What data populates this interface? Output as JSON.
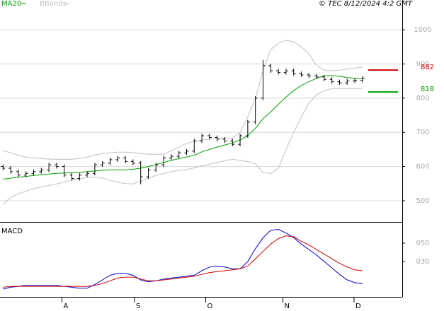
{
  "chart_data": [
    {
      "type": "ohlc",
      "credit": "© TEC 8/12/2024 4:2 GMT",
      "x": [
        0,
        1,
        2,
        3,
        4,
        5,
        6,
        7,
        8,
        9,
        10,
        11,
        12,
        13,
        14,
        15,
        16,
        17,
        18,
        19,
        20,
        21,
        22,
        23,
        24,
        25,
        26,
        27,
        28,
        29,
        30,
        31,
        32,
        33,
        34,
        35,
        36,
        37,
        38,
        39,
        40,
        41,
        42,
        43,
        44,
        45,
        46,
        47
      ],
      "open": [
        600,
        595,
        585,
        575,
        580,
        585,
        590,
        605,
        600,
        575,
        565,
        575,
        580,
        605,
        610,
        620,
        625,
        615,
        610,
        570,
        590,
        605,
        625,
        630,
        640,
        645,
        675,
        690,
        685,
        680,
        675,
        665,
        690,
        730,
        800,
        895,
        880,
        875,
        880,
        872,
        868,
        865,
        862,
        855,
        848,
        845,
        850,
        852
      ],
      "high": [
        606,
        601,
        591,
        586,
        591,
        596,
        611,
        611,
        606,
        581,
        581,
        586,
        611,
        616,
        626,
        631,
        631,
        621,
        616,
        596,
        611,
        631,
        636,
        646,
        651,
        681,
        696,
        696,
        691,
        686,
        681,
        696,
        736,
        806,
        912,
        901,
        886,
        886,
        886,
        878,
        874,
        871,
        868,
        861,
        854,
        856,
        858,
        864
      ],
      "low": [
        589,
        579,
        569,
        569,
        574,
        579,
        584,
        594,
        569,
        559,
        559,
        569,
        574,
        599,
        604,
        614,
        609,
        604,
        548,
        564,
        584,
        599,
        619,
        624,
        634,
        639,
        669,
        679,
        674,
        669,
        659,
        659,
        684,
        724,
        794,
        874,
        869,
        869,
        866,
        862,
        859,
        856,
        849,
        842,
        839,
        839,
        844,
        846
      ],
      "close": [
        595,
        585,
        575,
        580,
        585,
        590,
        605,
        600,
        575,
        565,
        575,
        580,
        605,
        610,
        620,
        625,
        615,
        610,
        570,
        590,
        605,
        625,
        630,
        640,
        645,
        675,
        690,
        685,
        680,
        675,
        665,
        690,
        730,
        800,
        895,
        880,
        875,
        880,
        872,
        868,
        865,
        862,
        855,
        848,
        845,
        850,
        852,
        858
      ],
      "bar_color": "#000000",
      "series": [
        {
          "name": "MA20",
          "color": "#00a000",
          "values": [
            563,
            566,
            569,
            571,
            574,
            576,
            578,
            580,
            581,
            582,
            583,
            585,
            587,
            589,
            590,
            590,
            590,
            592,
            595,
            600,
            606,
            612,
            618,
            623,
            628,
            633,
            643,
            650,
            657,
            663,
            669,
            678,
            690,
            712,
            740,
            760,
            782,
            803,
            822,
            837,
            848,
            858,
            865,
            866,
            864,
            860,
            858,
            857
          ]
        },
        {
          "name": "BBands",
          "color": "#c0c0c0",
          "upper": [
            646,
            640,
            633,
            628,
            625,
            623,
            622,
            621,
            621,
            621,
            624,
            628,
            634,
            638,
            640,
            642,
            642,
            641,
            638,
            636,
            636,
            636,
            646,
            657,
            668,
            673,
            677,
            680,
            682,
            683,
            683,
            700,
            745,
            800,
            880,
            942,
            960,
            969,
            965,
            950,
            930,
            895,
            882,
            880,
            882,
            885,
            888,
            890
          ],
          "lower": [
            490,
            510,
            520,
            528,
            535,
            540,
            545,
            549,
            555,
            560,
            564,
            568,
            569,
            566,
            560,
            554,
            550,
            549,
            558,
            566,
            574,
            580,
            585,
            589,
            591,
            596,
            602,
            607,
            612,
            617,
            621,
            618,
            614,
            608,
            582,
            580,
            595,
            650,
            700,
            745,
            785,
            810,
            822,
            828,
            828,
            828,
            828,
            828
          ]
        }
      ],
      "markers": [
        {
          "value": 882,
          "color": "#cc0000"
        },
        {
          "value": 818,
          "color": "#00a000"
        }
      ],
      "xlim": [
        -0.4,
        52.2
      ],
      "ylim": [
        440,
        1087
      ],
      "yticks": [
        500,
        600,
        700,
        800,
        900,
        1000
      ],
      "grid": true
    },
    {
      "type": "line",
      "title": "MACD",
      "x": [
        0,
        1,
        2,
        3,
        4,
        5,
        6,
        7,
        8,
        9,
        10,
        11,
        12,
        13,
        14,
        15,
        16,
        17,
        18,
        19,
        20,
        21,
        22,
        23,
        24,
        25,
        26,
        27,
        28,
        29,
        30,
        31,
        32,
        33,
        34,
        35,
        36,
        37,
        38,
        39,
        40,
        41,
        42,
        43,
        44,
        45,
        46,
        47
      ],
      "series": [
        {
          "color": "#0000cc",
          "values": [
            0,
            2,
            3,
            4,
            4,
            4,
            4,
            4,
            3,
            2,
            1,
            1,
            5,
            10,
            15,
            17,
            17,
            15,
            10,
            8,
            9,
            11,
            12,
            13,
            14,
            15,
            20,
            24,
            25,
            24,
            22,
            22,
            30,
            44,
            56,
            64,
            65,
            61,
            56,
            49,
            43,
            37,
            30,
            23,
            16,
            10,
            7,
            6
          ]
        },
        {
          "color": "#cc0000",
          "values": [
            2,
            3,
            3,
            3,
            3,
            3,
            3,
            3,
            3,
            3,
            3,
            3,
            4,
            6,
            9,
            12,
            13,
            13,
            11,
            9,
            9,
            10,
            11,
            12,
            13,
            14,
            16,
            18,
            19,
            20,
            21,
            22,
            25,
            33,
            41,
            49,
            55,
            58,
            57,
            52,
            48,
            43,
            38,
            33,
            28,
            24,
            21,
            20
          ]
        }
      ],
      "xlim": [
        -0.4,
        52.2
      ],
      "ylim": [
        -8.5,
        72.3
      ],
      "yticks": [
        {
          "value": 30,
          "label": "030"
        },
        {
          "value": 50,
          "label": "050"
        }
      ],
      "xticks": [
        {
          "value": 7.7,
          "label": "A"
        },
        {
          "value": 17.2,
          "label": "S"
        },
        {
          "value": 26.5,
          "label": "O"
        },
        {
          "value": 36.6,
          "label": "N"
        },
        {
          "value": 45.9,
          "label": "D"
        }
      ]
    }
  ]
}
